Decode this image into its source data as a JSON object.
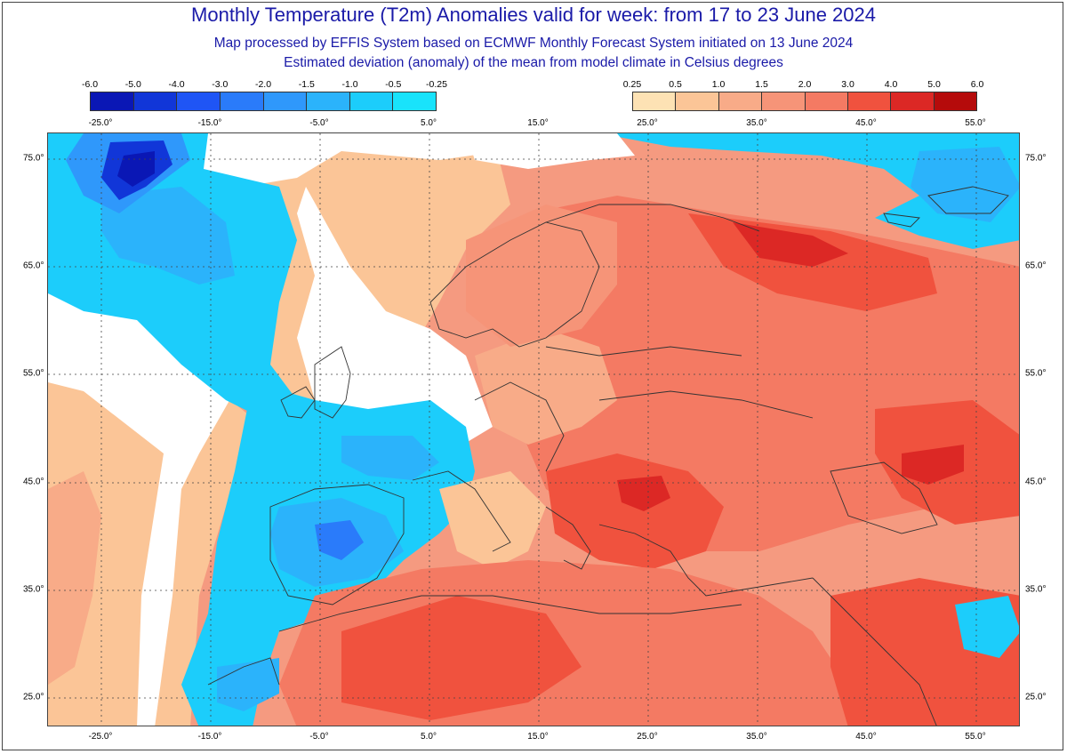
{
  "header": {
    "title": "Monthly Temperature (T2m) Anomalies valid for week: from 17 to 23 June 2024",
    "subtitle1": "Map processed by EFFIS System based on ECMWF Monthly Forecast System initiated on 13 June 2024",
    "subtitle2": "Estimated deviation (anomaly) of the mean from model climate in Celsius degrees"
  },
  "legend_cold": {
    "ticks": [
      "-6.0",
      "-5.0",
      "-4.0",
      "-3.0",
      "-2.0",
      "-1.5",
      "-1.0",
      "-0.5",
      "-0.25"
    ],
    "colors": [
      "#0a17b5",
      "#1136d8",
      "#1f55f5",
      "#2a7bfa",
      "#2f98fb",
      "#2bb3fb",
      "#1ccdfb",
      "#19e3fb"
    ]
  },
  "legend_warm": {
    "ticks": [
      "0.25",
      "0.5",
      "1.0",
      "1.5",
      "2.0",
      "3.0",
      "4.0",
      "5.0",
      "6.0"
    ],
    "colors": [
      "#fde2b4",
      "#fbc597",
      "#f8ab88",
      "#f69478",
      "#f47a63",
      "#f0523e",
      "#dc2825",
      "#b50b0b"
    ]
  },
  "lon_labels": [
    "-25.0°",
    "-15.0°",
    "-5.0°",
    "5.0°",
    "15.0°",
    "25.0°",
    "35.0°",
    "45.0°",
    "55.0°"
  ],
  "lat_labels": [
    "75.0°",
    "65.0°",
    "55.0°",
    "45.0°",
    "35.0°",
    "25.0°"
  ]
}
